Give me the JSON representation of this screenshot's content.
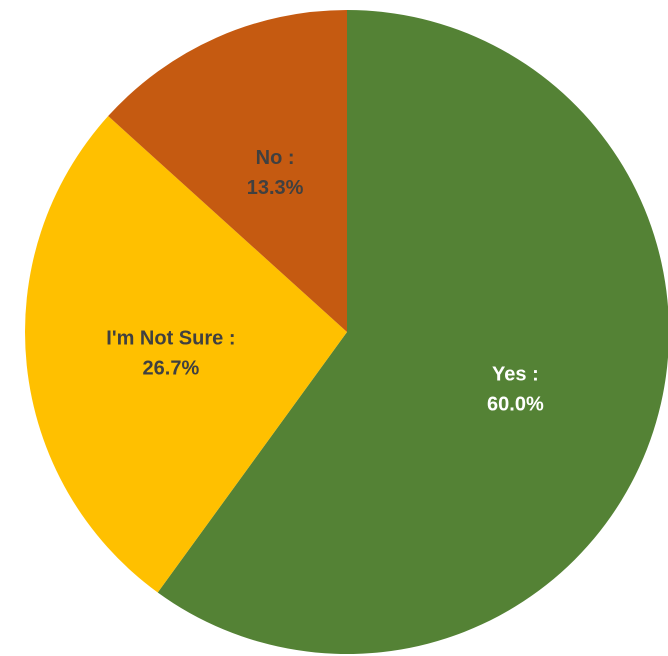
{
  "chart_data": {
    "type": "pie",
    "title": "",
    "slices": [
      {
        "label": "Yes",
        "value": 60.0,
        "display_name": "Yes :",
        "display_value": "60.0%",
        "color": "#548235",
        "label_color": "#ffffff"
      },
      {
        "label": "I'm Not Sure",
        "value": 26.7,
        "display_name": "I'm Not Sure :",
        "display_value": "26.7%",
        "color": "#ffc000",
        "label_color": "#404040"
      },
      {
        "label": "No",
        "value": 13.3,
        "display_name": "No :",
        "display_value": "13.3%",
        "color": "#c55a11",
        "label_color": "#404040"
      }
    ],
    "start_angle": "12 o'clock",
    "direction": "clockwise",
    "legend": "none",
    "labels_inside": true
  }
}
